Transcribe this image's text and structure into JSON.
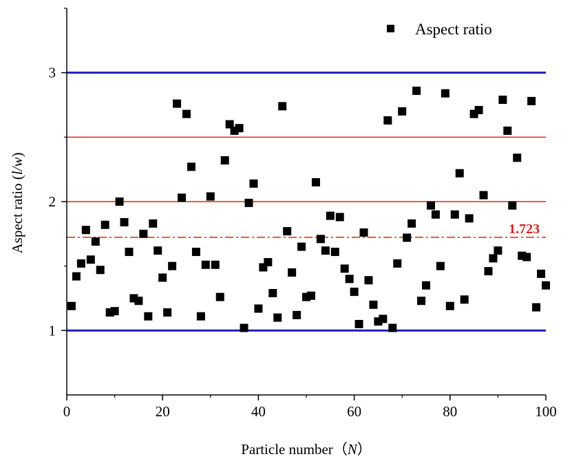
{
  "chart_data": {
    "type": "scatter",
    "xlabel": "Particle number（N）",
    "xlabel_parts": {
      "prefix": "Particle number（",
      "var": "N",
      "suffix": "）"
    },
    "ylabel": "Aspect ratio (l/w)",
    "ylabel_parts": {
      "prefix": "Aspect ratio (",
      "var": "l/w",
      "suffix": ")"
    },
    "xlim": [
      0,
      100
    ],
    "ylim": [
      0.5,
      3.5
    ],
    "xticks": [
      0,
      20,
      40,
      60,
      80,
      100
    ],
    "xtick_labels": [
      "0",
      "20",
      "40",
      "60",
      "80",
      "100"
    ],
    "yticks": [
      1,
      2,
      3
    ],
    "ytick_labels": [
      "1",
      "2",
      "3"
    ],
    "legend": {
      "label": "Aspect ratio",
      "position": "top-right"
    },
    "series": [
      {
        "name": "Aspect ratio",
        "marker": "square",
        "color": "#000000",
        "x": [
          1,
          2,
          3,
          4,
          5,
          6,
          7,
          8,
          9,
          10,
          11,
          12,
          13,
          14,
          15,
          16,
          17,
          18,
          19,
          20,
          21,
          22,
          23,
          24,
          25,
          26,
          27,
          28,
          29,
          30,
          31,
          32,
          33,
          34,
          35,
          36,
          37,
          38,
          39,
          40,
          41,
          42,
          43,
          44,
          45,
          46,
          47,
          48,
          49,
          50,
          51,
          52,
          53,
          54,
          55,
          56,
          57,
          58,
          59,
          60,
          61,
          62,
          63,
          64,
          65,
          66,
          67,
          68,
          69,
          70,
          71,
          72,
          73,
          74,
          75,
          76,
          77,
          78,
          79,
          80,
          81,
          82,
          83,
          84,
          85,
          86,
          87,
          88,
          89,
          90,
          91,
          92,
          93,
          94,
          95,
          96,
          97,
          98,
          99,
          100
        ],
        "y": [
          1.19,
          1.42,
          1.52,
          1.78,
          1.55,
          1.69,
          1.47,
          1.82,
          1.14,
          1.15,
          2.0,
          1.84,
          1.61,
          1.25,
          1.23,
          1.75,
          1.11,
          1.83,
          1.62,
          1.41,
          1.14,
          1.5,
          2.76,
          2.03,
          2.68,
          2.27,
          1.61,
          1.11,
          1.51,
          2.04,
          1.51,
          1.26,
          2.32,
          2.6,
          2.55,
          2.57,
          1.02,
          1.99,
          2.14,
          1.17,
          1.49,
          1.53,
          1.29,
          1.1,
          2.74,
          1.77,
          1.45,
          1.12,
          1.65,
          1.26,
          1.27,
          2.15,
          1.71,
          1.62,
          1.89,
          1.61,
          1.88,
          1.48,
          1.4,
          1.3,
          1.05,
          1.76,
          1.39,
          1.2,
          1.07,
          1.09,
          2.63,
          1.02,
          1.52,
          2.7,
          1.72,
          1.83,
          2.86,
          1.23,
          1.35,
          1.97,
          1.9,
          1.5,
          2.84,
          1.19,
          1.9,
          2.22,
          1.24,
          1.87,
          2.68,
          2.71,
          2.05,
          1.46,
          1.56,
          1.62,
          2.79,
          2.55,
          1.97,
          2.34,
          1.58,
          1.57,
          2.78,
          1.18,
          1.44,
          1.35
        ]
      }
    ],
    "reference_lines": [
      {
        "y": 3.0,
        "color": "#1f1fbf",
        "style": "solid",
        "weight": "thick"
      },
      {
        "y": 2.5,
        "color": "#e02020",
        "style": "solid",
        "weight": "thin"
      },
      {
        "y": 2.0,
        "color": "#e02020",
        "style": "solid",
        "weight": "thin"
      },
      {
        "y": 1.723,
        "color": "#e02020",
        "style": "dash-dot",
        "weight": "thin",
        "label": "1.723"
      },
      {
        "y": 1.0,
        "color": "#1f1fbf",
        "style": "solid",
        "weight": "thick"
      }
    ],
    "colors": {
      "blue_line": "#1f1fbf",
      "red_line": "#e02020",
      "ref_label": "#e02020",
      "marker": "#000000"
    }
  }
}
